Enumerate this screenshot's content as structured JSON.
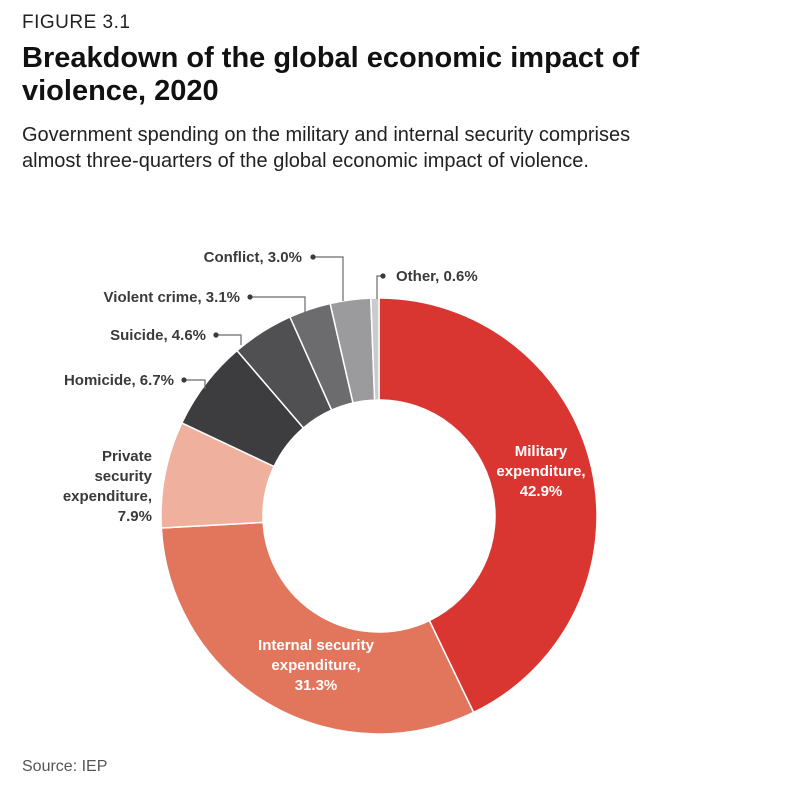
{
  "figure_label": "FIGURE 3.1",
  "title": "Breakdown of the global economic impact of violence, 2020",
  "subtitle": "Government spending on the military and internal security comprises almost three-quarters of the global economic impact of violence.",
  "source": "Source: IEP",
  "chart_data": {
    "type": "pie",
    "variant": "donut",
    "title": "Breakdown of the global economic impact of violence, 2020",
    "unit": "%",
    "slices": [
      {
        "name": "Military expenditure",
        "value": 42.9,
        "color": "#d93632",
        "label_lines": [
          "Military",
          "expenditure,",
          "42.9%"
        ],
        "label_style": "inside"
      },
      {
        "name": "Internal security expenditure",
        "value": 31.3,
        "color": "#e2765c",
        "label_lines": [
          "Internal security",
          "expenditure,",
          "31.3%"
        ],
        "label_style": "inside"
      },
      {
        "name": "Private security expenditure",
        "value": 7.9,
        "color": "#efb19e",
        "label_lines": [
          "Private",
          "security",
          "expenditure,",
          "7.9%"
        ],
        "label_style": "outside"
      },
      {
        "name": "Homicide",
        "value": 6.7,
        "color": "#3d3d3f",
        "label_lines": [
          "Homicide, 6.7%"
        ],
        "label_style": "leader"
      },
      {
        "name": "Suicide",
        "value": 4.6,
        "color": "#505052",
        "label_lines": [
          "Suicide, 4.6%"
        ],
        "label_style": "leader"
      },
      {
        "name": "Violent crime",
        "value": 3.1,
        "color": "#6c6c6e",
        "label_lines": [
          "Violent crime, 3.1%"
        ],
        "label_style": "leader"
      },
      {
        "name": "Conflict",
        "value": 3.0,
        "color": "#9b9b9d",
        "label_lines": [
          "Conflict, 3.0%"
        ],
        "label_style": "leader"
      },
      {
        "name": "Other",
        "value": 0.6,
        "color": "#c9cbce",
        "label_lines": [
          "Other, 0.6%"
        ],
        "label_style": "leader"
      }
    ]
  }
}
